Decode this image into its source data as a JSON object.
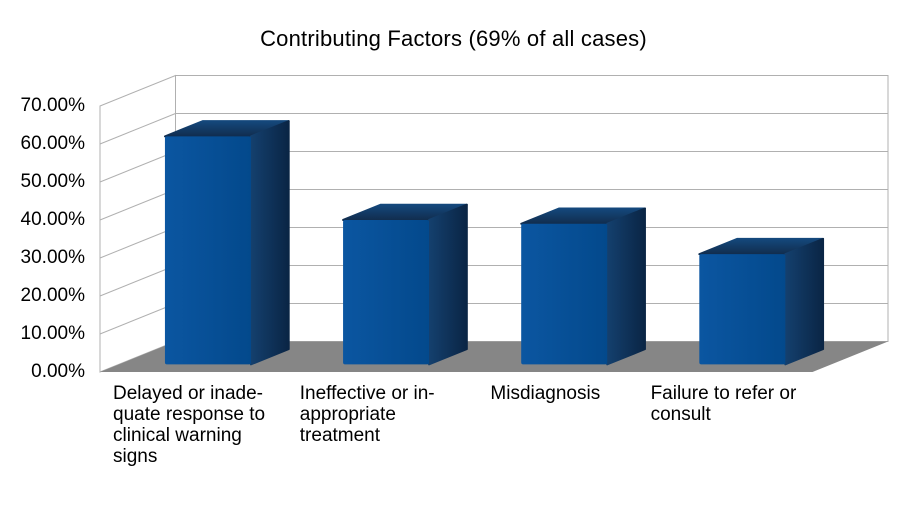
{
  "chart_data": {
    "type": "bar",
    "projection": "3d",
    "title": "Contributing Factors (69% of all cases)",
    "categories": [
      {
        "label": "Delayed or inadequate response to clinical warning signs",
        "lines": [
          "Delayed or inade-",
          "quate response to",
          "clinical warning",
          "signs"
        ],
        "bar_name": "bar-delayed-response"
      },
      {
        "label": "Ineffective or inappropriate treatment",
        "lines": [
          "Ineffective or in-",
          "appropriate",
          "treatment"
        ],
        "bar_name": "bar-ineffective-treatment"
      },
      {
        "label": "Misdiagnosis",
        "lines": [
          "Misdiagnosis"
        ],
        "bar_name": "bar-misdiagnosis"
      },
      {
        "label": "Failure to refer or consult",
        "lines": [
          "Failure to refer or",
          "consult"
        ],
        "bar_name": "bar-failure-to-refer"
      }
    ],
    "values": [
      60,
      38,
      37,
      29
    ],
    "unit": "%",
    "ylim": [
      0,
      70
    ],
    "ytick_step": 10,
    "yticks": [
      "0.00%",
      "10.00%",
      "20.00%",
      "30.00%",
      "40.00%",
      "50.00%",
      "60.00%",
      "70.00%"
    ],
    "xlabel": "",
    "ylabel": "",
    "grid": true,
    "legend": false,
    "colors": {
      "wall": "#ffffff",
      "grid": "#b0b0b0",
      "floor": "#868686",
      "bar_front_light": "#0b56a1",
      "bar_front_dark": "#03498c",
      "bar_top_front": "#112d4e",
      "bar_top_back": "#14487c",
      "bar_side_light": "#14406e",
      "bar_side_dark": "#0a2545",
      "text": "#000000"
    }
  }
}
